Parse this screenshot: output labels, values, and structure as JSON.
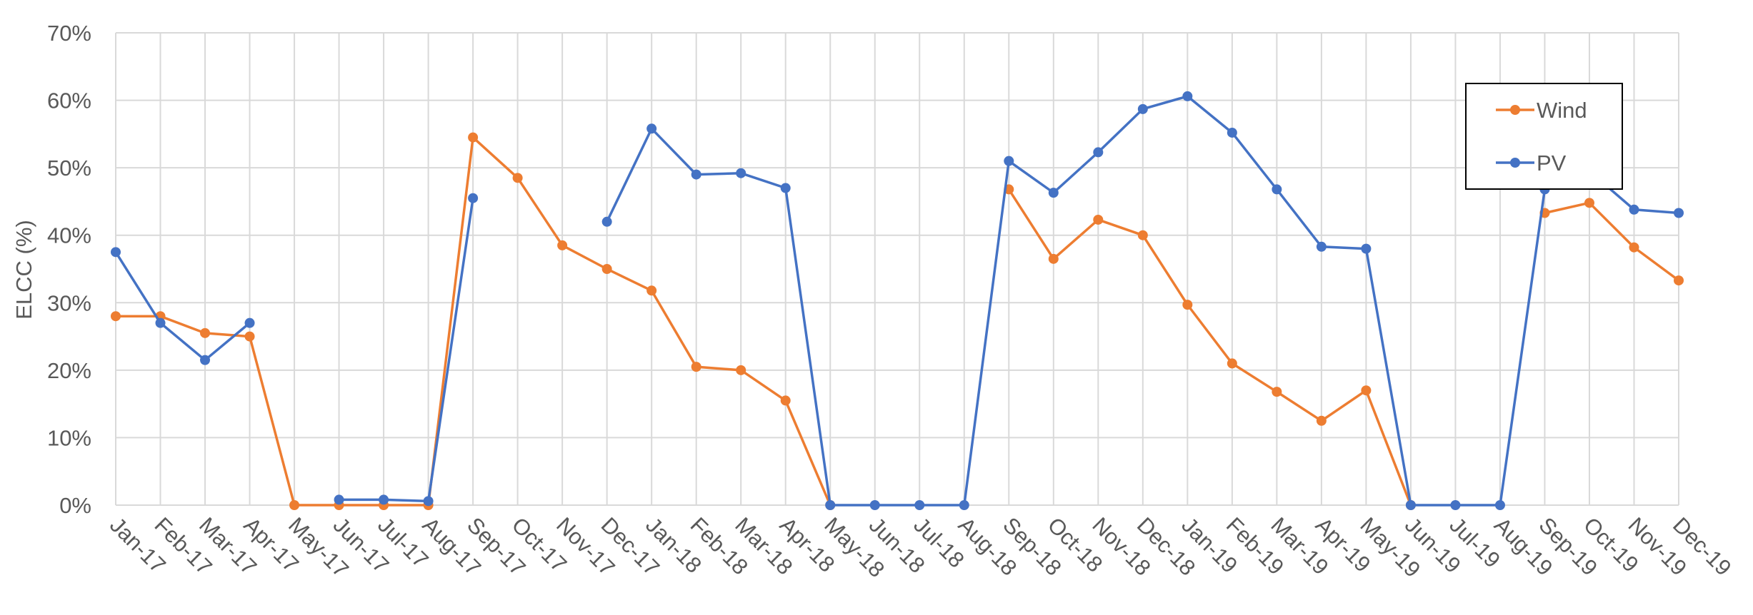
{
  "chart_data": {
    "type": "line",
    "ylabel": "ELCC (%)",
    "y_ticks": [
      "0%",
      "10%",
      "20%",
      "30%",
      "40%",
      "50%",
      "60%",
      "70%"
    ],
    "ylim": [
      0,
      70
    ],
    "grid": true,
    "legend_position": "top-right",
    "categories": [
      "Jan-17",
      "Feb-17",
      "Mar-17",
      "Apr-17",
      "May-17",
      "Jun-17",
      "Jul-17",
      "Aug-17",
      "Sep-17",
      "Oct-17",
      "Nov-17",
      "Dec-17",
      "Jan-18",
      "Feb-18",
      "Mar-18",
      "Apr-18",
      "May-18",
      "Jun-18",
      "Jul-18",
      "Aug-18",
      "Sep-18",
      "Oct-18",
      "Nov-18",
      "Dec-18",
      "Jan-19",
      "Feb-19",
      "Mar-19",
      "Apr-19",
      "May-19",
      "Jun-19",
      "Jul-19",
      "Aug-19",
      "Sep-19",
      "Oct-19",
      "Nov-19",
      "Dec-19"
    ],
    "series": [
      {
        "name": "Wind",
        "color": "#ED7D31",
        "values": [
          28,
          28,
          25.5,
          25,
          0,
          0,
          0,
          0,
          54.5,
          48.5,
          38.5,
          35,
          31.8,
          20.5,
          20,
          15.5,
          0,
          null,
          null,
          null,
          46.8,
          36.5,
          42.3,
          40,
          29.7,
          21,
          16.8,
          12.5,
          17,
          0,
          null,
          null,
          43.3,
          44.8,
          38.2,
          33.3
        ]
      },
      {
        "name": "PV",
        "color": "#4472C4",
        "values": [
          37.5,
          27,
          21.5,
          27,
          null,
          0.8,
          0.8,
          0.6,
          45.5,
          null,
          null,
          42,
          55.8,
          49,
          49.2,
          47,
          0,
          0,
          0,
          0,
          51,
          46.3,
          52.3,
          58.7,
          60.6,
          55.2,
          46.8,
          38.3,
          38,
          0,
          0,
          0,
          46.8,
          49.5,
          43.8,
          43.3
        ]
      }
    ]
  }
}
